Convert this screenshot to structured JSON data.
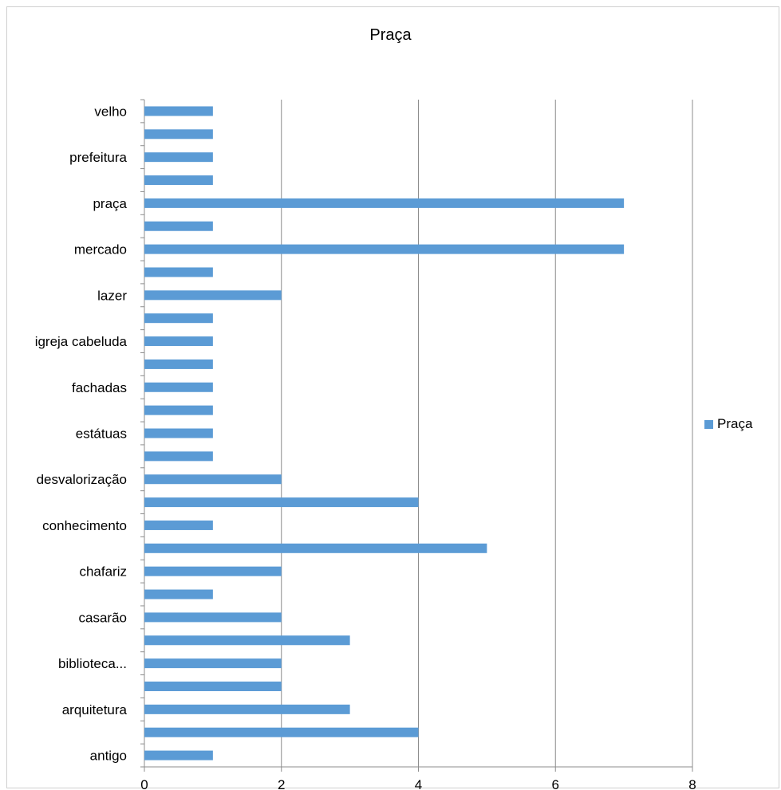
{
  "chart_data": {
    "type": "bar",
    "orientation": "horizontal",
    "title": "Praça",
    "xlabel": "",
    "ylabel": "",
    "xlim": [
      0,
      8
    ],
    "x_ticks": [
      "0",
      "2",
      "4",
      "6",
      "8"
    ],
    "grid": "vertical major gridlines",
    "legend_position": "right",
    "bar_color": "#5b9bd5",
    "categories": [
      "antigo",
      "",
      "arquitetura",
      "",
      "biblioteca...",
      "",
      "casarão",
      "",
      "chafariz",
      "",
      "conhecimento",
      "",
      "desvalorização",
      "",
      "estátuas",
      "",
      "fachadas",
      "",
      "igreja cabeluda",
      "",
      "lazer",
      "",
      "mercado",
      "",
      "praça",
      "",
      "prefeitura",
      "",
      "velho"
    ],
    "series": [
      {
        "name": "Praça",
        "values": [
          1,
          4,
          3,
          2,
          2,
          3,
          2,
          1,
          2,
          5,
          1,
          4,
          2,
          1,
          1,
          1,
          1,
          1,
          1,
          1,
          2,
          1,
          7,
          1,
          7,
          1,
          1,
          1,
          1
        ]
      }
    ]
  }
}
